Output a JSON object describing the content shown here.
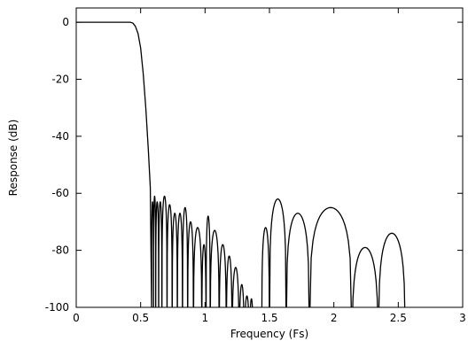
{
  "chart_data": {
    "type": "line",
    "title": "",
    "xlabel": "Frequency (Fs)",
    "ylabel": "Response (dB)",
    "xlim": [
      0,
      3
    ],
    "ylim": [
      -100,
      5
    ],
    "x_ticks": [
      {
        "value": 0,
        "label": "0"
      },
      {
        "value": 0.5,
        "label": "0.5"
      },
      {
        "value": 1,
        "label": "1"
      },
      {
        "value": 1.5,
        "label": "1.5"
      },
      {
        "value": 2,
        "label": "2"
      },
      {
        "value": 2.5,
        "label": "2.5"
      },
      {
        "value": 3,
        "label": "3"
      }
    ],
    "y_ticks": [
      {
        "value": 0,
        "label": "0"
      },
      {
        "value": -20,
        "label": "-20"
      },
      {
        "value": -40,
        "label": "-40"
      },
      {
        "value": -60,
        "label": "-60"
      },
      {
        "value": -80,
        "label": "-80"
      },
      {
        "value": -100,
        "label": "-100"
      }
    ],
    "grid": false,
    "legend": "none",
    "line_color": "#000000",
    "passband": {
      "x_start": 0,
      "x_end": 0.42,
      "level": 0
    },
    "transition": [
      [
        0.42,
        0
      ],
      [
        0.44,
        -0.3
      ],
      [
        0.46,
        -1.5
      ],
      [
        0.48,
        -4
      ],
      [
        0.5,
        -9
      ],
      [
        0.52,
        -18
      ],
      [
        0.54,
        -30
      ],
      [
        0.56,
        -45
      ],
      [
        0.575,
        -58
      ],
      [
        0.585,
        -100
      ]
    ],
    "stopband_lobes": [
      [
        0.585,
        0.6,
        -63
      ],
      [
        0.6,
        0.617,
        -61
      ],
      [
        0.617,
        0.64,
        -63
      ],
      [
        0.64,
        0.665,
        -63
      ],
      [
        0.665,
        0.705,
        -61
      ],
      [
        0.705,
        0.745,
        -64
      ],
      [
        0.745,
        0.785,
        -67
      ],
      [
        0.785,
        0.825,
        -67
      ],
      [
        0.825,
        0.865,
        -65
      ],
      [
        0.865,
        0.91,
        -70
      ],
      [
        0.91,
        0.975,
        -72
      ],
      [
        0.975,
        1.008,
        -78
      ],
      [
        1.008,
        1.04,
        -68
      ],
      [
        1.04,
        1.11,
        -73
      ],
      [
        1.11,
        1.165,
        -78
      ],
      [
        1.165,
        1.21,
        -82
      ],
      [
        1.21,
        1.265,
        -86
      ],
      [
        1.265,
        1.305,
        -92
      ],
      [
        1.305,
        1.345,
        -96
      ],
      [
        1.345,
        1.375,
        -97
      ],
      [
        1.375,
        1.44,
        -100
      ],
      [
        1.44,
        1.5,
        -72
      ],
      [
        1.5,
        1.63,
        -62
      ],
      [
        1.63,
        1.81,
        -67
      ],
      [
        1.81,
        2.14,
        -65
      ],
      [
        2.14,
        2.345,
        -79
      ],
      [
        2.345,
        2.555,
        -74
      ]
    ]
  }
}
